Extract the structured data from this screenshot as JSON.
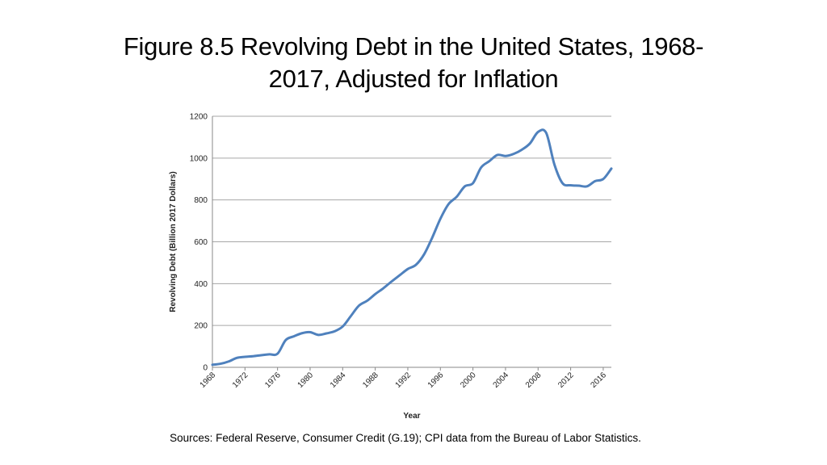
{
  "slide": {
    "title_line1": "Figure 8.5 Revolving Debt in the United States, 1968-",
    "title_line2": "2017, Adjusted for Inflation",
    "source": "Sources: Federal Reserve, Consumer Credit (G.19); CPI data from the Bureau of Labor Statistics."
  },
  "chart_data": {
    "type": "line",
    "title": "",
    "xlabel": "Year",
    "ylabel": "Revolving Debt (Billion 2017 Dollars)",
    "xlim": [
      1968,
      2017
    ],
    "ylim": [
      0,
      1200
    ],
    "x_ticks": [
      1968,
      1972,
      1976,
      1980,
      1984,
      1988,
      1992,
      1996,
      2000,
      2004,
      2008,
      2012,
      2016
    ],
    "y_ticks": [
      0,
      200,
      400,
      600,
      800,
      1000,
      1200
    ],
    "grid": "horizontal",
    "color": "#4f81bd",
    "series": [
      {
        "name": "Revolving Debt",
        "x": [
          1968,
          1969,
          1970,
          1971,
          1972,
          1973,
          1974,
          1975,
          1976,
          1977,
          1978,
          1979,
          1980,
          1981,
          1982,
          1983,
          1984,
          1985,
          1986,
          1987,
          1988,
          1989,
          1990,
          1991,
          1992,
          1993,
          1994,
          1995,
          1996,
          1997,
          1998,
          1999,
          2000,
          2001,
          2002,
          2003,
          2004,
          2005,
          2006,
          2007,
          2008,
          2009,
          2010,
          2011,
          2012,
          2013,
          2014,
          2015,
          2016,
          2017
        ],
        "values": [
          12,
          17,
          28,
          45,
          50,
          53,
          58,
          62,
          65,
          130,
          148,
          163,
          168,
          155,
          162,
          172,
          195,
          245,
          295,
          318,
          350,
          378,
          410,
          440,
          470,
          490,
          540,
          620,
          710,
          780,
          815,
          865,
          880,
          955,
          985,
          1015,
          1010,
          1020,
          1040,
          1070,
          1125,
          1120,
          970,
          880,
          870,
          868,
          865,
          890,
          900,
          950
        ]
      }
    ]
  }
}
